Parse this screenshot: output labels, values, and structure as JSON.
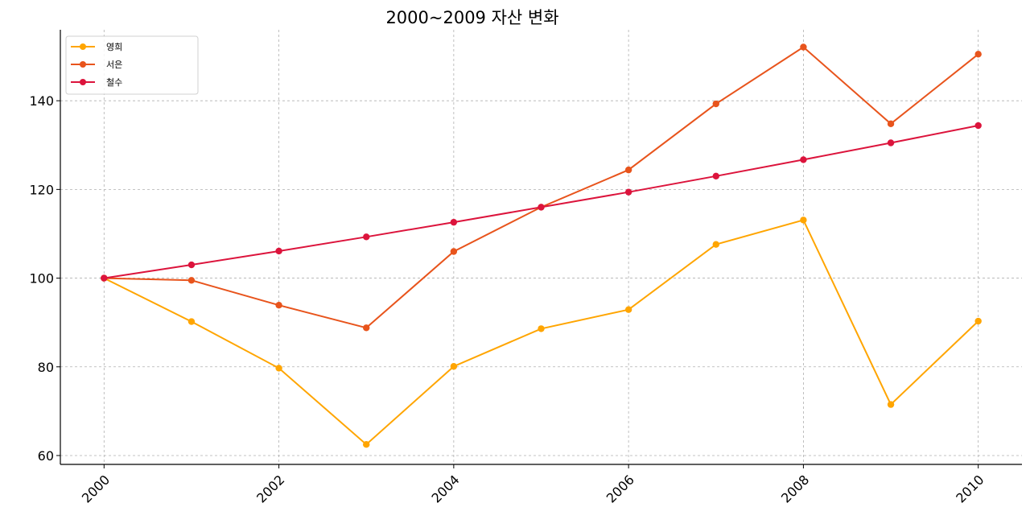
{
  "chart_data": {
    "type": "line",
    "title": "2000~2009 자산 변화",
    "xlabel": "",
    "ylabel": "",
    "x": [
      2000,
      2001,
      2002,
      2003,
      2004,
      2005,
      2006,
      2007,
      2008,
      2009,
      2010
    ],
    "x_ticks": [
      2000,
      2002,
      2004,
      2006,
      2008,
      2010
    ],
    "y_ticks": [
      60,
      80,
      100,
      120,
      140
    ],
    "xlim": [
      1999.5,
      2010.5
    ],
    "ylim": [
      58,
      156
    ],
    "grid": true,
    "legend_position": "upper-left",
    "series": [
      {
        "name": "영희",
        "color": "#FFA500",
        "values": [
          100,
          90.2,
          79.7,
          62.5,
          80.1,
          88.6,
          92.9,
          107.6,
          113.1,
          71.5,
          90.3
        ]
      },
      {
        "name": "서은",
        "color": "#E8541C",
        "values": [
          100,
          99.5,
          93.9,
          88.8,
          106.0,
          116.0,
          124.4,
          139.3,
          152.1,
          134.8,
          150.5
        ]
      },
      {
        "name": "철수",
        "color": "#DC143C",
        "values": [
          100,
          103.0,
          106.1,
          109.3,
          112.6,
          116.0,
          119.4,
          123.0,
          126.7,
          130.5,
          134.4
        ]
      }
    ]
  }
}
